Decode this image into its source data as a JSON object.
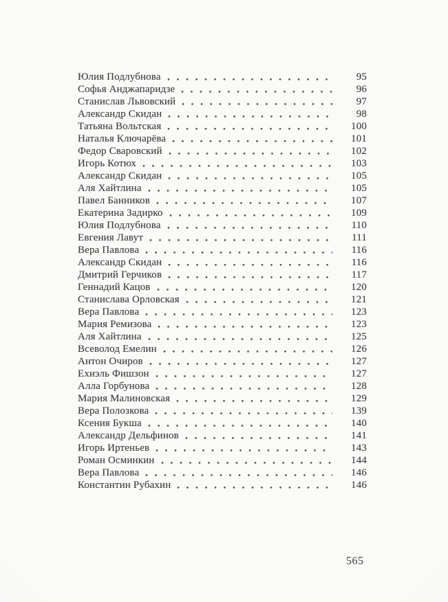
{
  "page": {
    "folio": "565"
  },
  "toc": {
    "entries": [
      {
        "name": "Юлия Подлубнова",
        "page": "95"
      },
      {
        "name": "Софья Анджапаридзе",
        "page": "96"
      },
      {
        "name": "Станислав Львовский",
        "page": "97"
      },
      {
        "name": "Александр Скидан",
        "page": "98"
      },
      {
        "name": "Татьяна Вольтская",
        "page": "100"
      },
      {
        "name": "Наталья Ключарёва",
        "page": "101"
      },
      {
        "name": "Федор Сваровский",
        "page": "102"
      },
      {
        "name": "Игорь Котюх",
        "page": "103"
      },
      {
        "name": "Александр Скидан",
        "page": "105"
      },
      {
        "name": "Аля Хайтлина",
        "page": "105"
      },
      {
        "name": "Павел Банников",
        "page": "107"
      },
      {
        "name": "Екатерина Задирко",
        "page": "109"
      },
      {
        "name": "Юлия Подлубнова",
        "page": "110"
      },
      {
        "name": "Евгения Лавут",
        "page": "111"
      },
      {
        "name": "Вера Павлова",
        "page": "116"
      },
      {
        "name": "Александр Скидан",
        "page": "116"
      },
      {
        "name": "Дмитрий Герчиков",
        "page": "117"
      },
      {
        "name": "Геннадий Кацов",
        "page": "120"
      },
      {
        "name": "Станислава Орловская",
        "page": "121"
      },
      {
        "name": "Вера Павлова",
        "page": "123"
      },
      {
        "name": "Мария Ремизова",
        "page": "123"
      },
      {
        "name": "Аля Хайтлина",
        "page": "125"
      },
      {
        "name": "Всеволод Емелин",
        "page": "126"
      },
      {
        "name": "Антон Очиров",
        "page": "127"
      },
      {
        "name": "Ехиэль Фишзон",
        "page": "127"
      },
      {
        "name": "Алла Горбунова",
        "page": "128"
      },
      {
        "name": "Мария Малиновская",
        "page": "129"
      },
      {
        "name": "Вера Полозкова",
        "page": "139"
      },
      {
        "name": "Ксения Букша",
        "page": "140"
      },
      {
        "name": "Александр Дельфинов",
        "page": "141"
      },
      {
        "name": "Игорь Иртеньев",
        "page": "143"
      },
      {
        "name": "Роман Осминкин",
        "page": "144"
      },
      {
        "name": "Вера Павлова",
        "page": "146"
      },
      {
        "name": "Константин Рубахин",
        "page": "146"
      }
    ]
  }
}
